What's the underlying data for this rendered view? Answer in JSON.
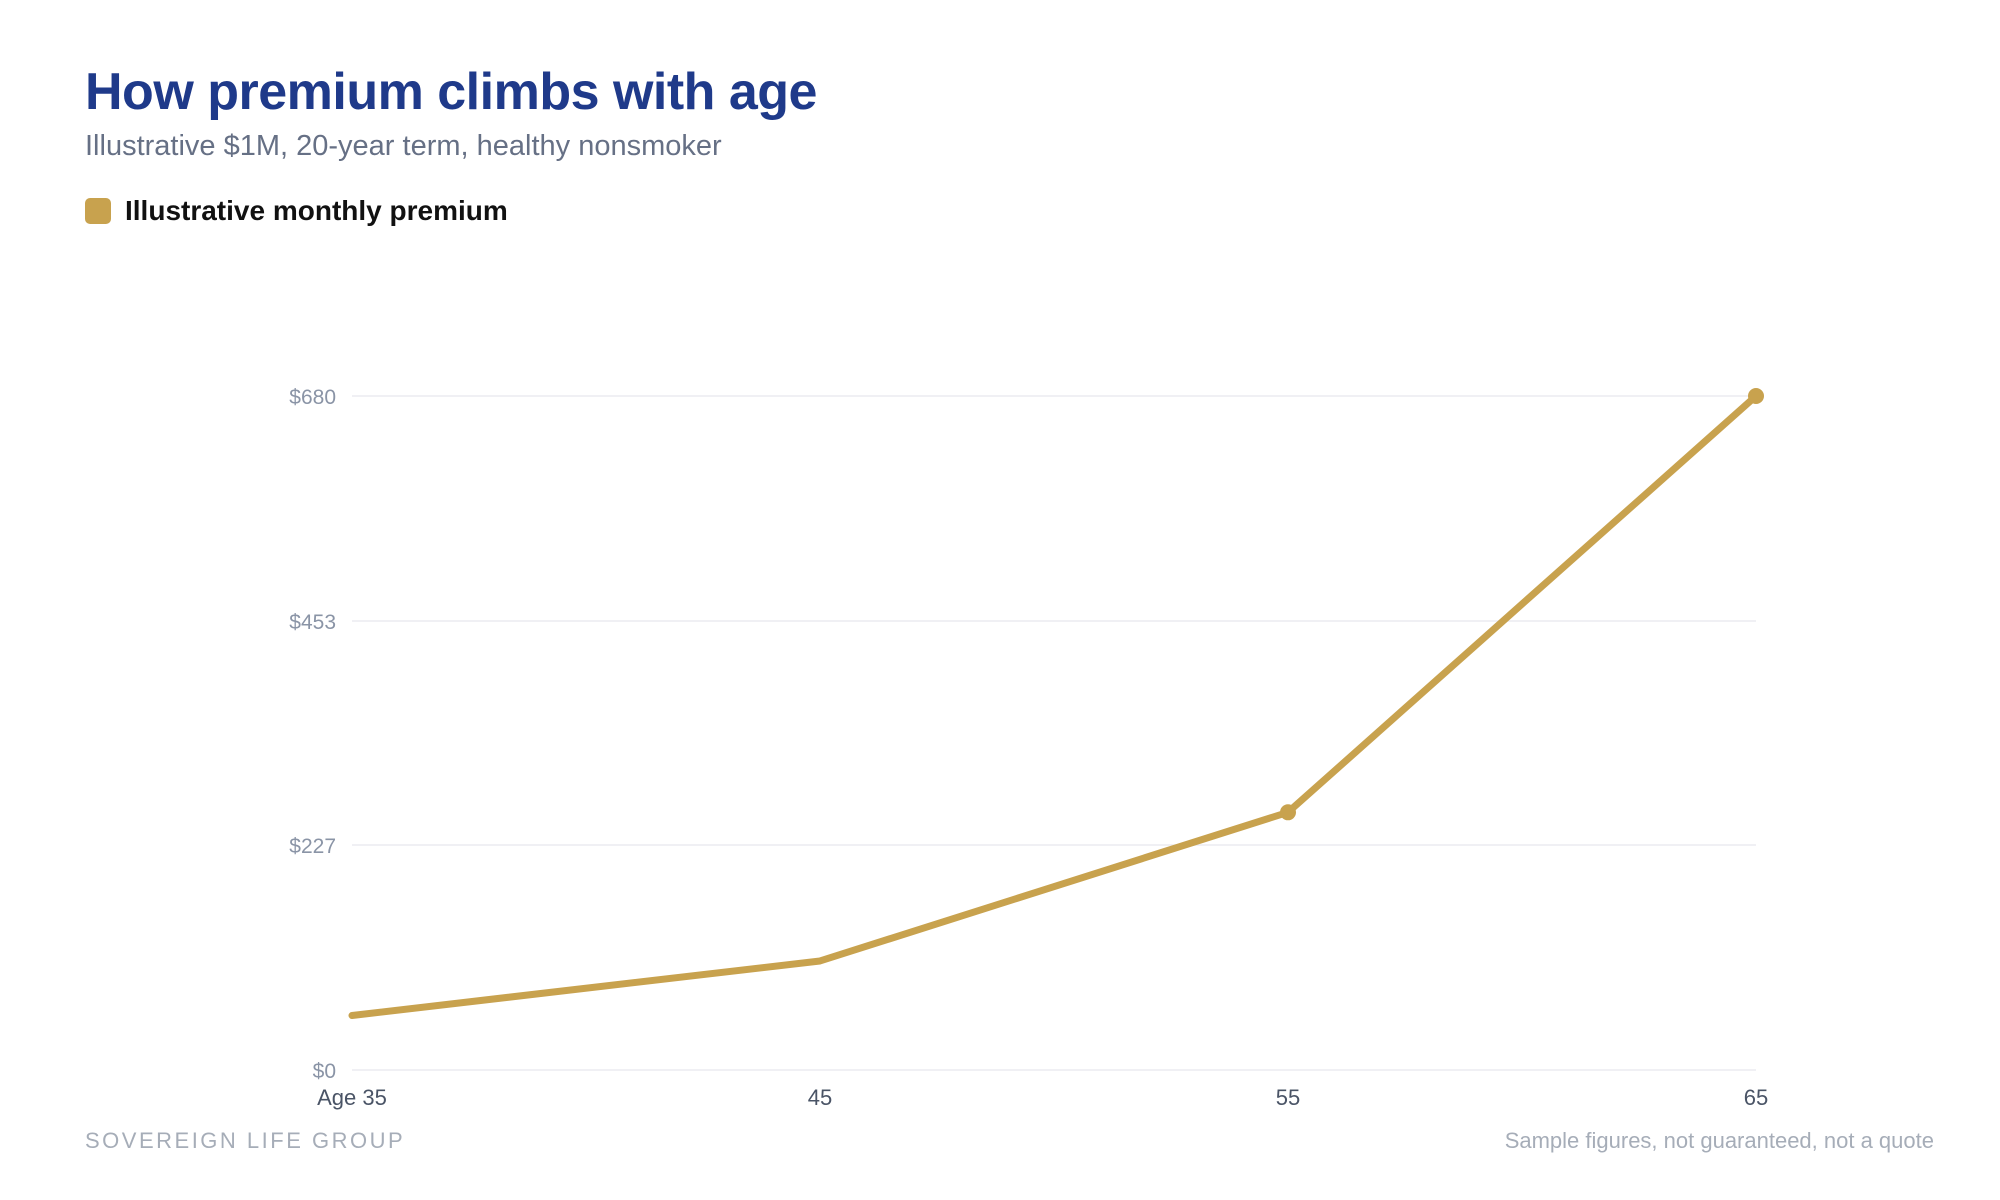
{
  "header": {
    "title": "How premium climbs with age",
    "subtitle": "Illustrative $1M, 20-year term, healthy nonsmoker"
  },
  "legend": {
    "label": "Illustrative monthly premium",
    "color": "#c8a24e"
  },
  "footer": {
    "brand": "SOVEREIGN LIFE GROUP",
    "disclaimer": "Sample figures, not guaranteed, not a quote"
  },
  "chart_data": {
    "type": "line",
    "title": "How premium climbs with age",
    "subtitle": "Illustrative $1M, 20-year term, healthy nonsmoker",
    "x": [
      "Age 35",
      "45",
      "55",
      "65"
    ],
    "series": [
      {
        "name": "Illustrative monthly premium",
        "values": [
          55,
          110,
          260,
          680
        ],
        "color": "#c8a24e",
        "markers": [
          false,
          false,
          true,
          true
        ]
      }
    ],
    "y_ticks": [
      {
        "value": 0,
        "label": "$0"
      },
      {
        "value": 227,
        "label": "$227"
      },
      {
        "value": 453,
        "label": "$453"
      },
      {
        "value": 680,
        "label": "$680"
      }
    ],
    "ylim": [
      0,
      680
    ],
    "grid": true,
    "legend_position": "top-left",
    "xlabel": "",
    "ylabel": ""
  }
}
